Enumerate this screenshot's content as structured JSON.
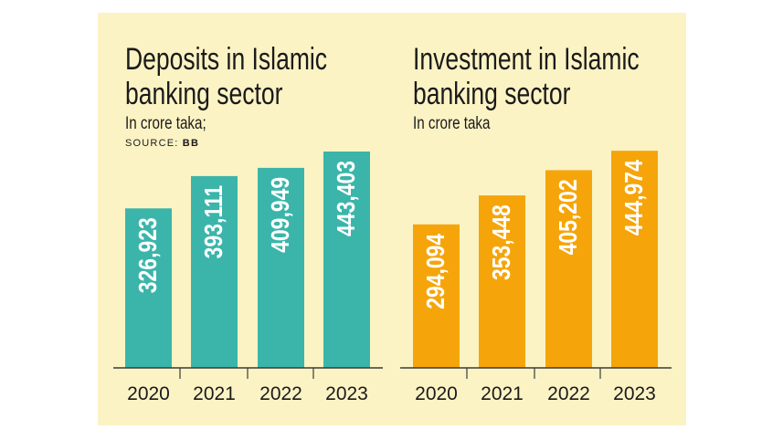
{
  "chart_data": [
    {
      "type": "bar",
      "title_lines": [
        "Deposits in Islamic",
        "banking sector"
      ],
      "subtitle": "In crore taka;",
      "source_label": "SOURCE:",
      "source_value": "BB",
      "categories": [
        "2020",
        "2021",
        "2022",
        "2023"
      ],
      "values": [
        326923,
        393111,
        409949,
        443403
      ],
      "value_labels": [
        "326,923",
        "393,111",
        "409,949",
        "443,403"
      ],
      "color": "#3bb5aa",
      "label_color": "#ffffff"
    },
    {
      "type": "bar",
      "title_lines": [
        "Investment in Islamic",
        "banking sector"
      ],
      "subtitle": "In crore taka",
      "categories": [
        "2020",
        "2021",
        "2022",
        "2023"
      ],
      "values": [
        294094,
        353448,
        405202,
        444974
      ],
      "value_labels": [
        "294,094",
        "353,448",
        "405,202",
        "444,974"
      ],
      "color": "#f5a50a",
      "label_color": "#ffffff"
    }
  ]
}
